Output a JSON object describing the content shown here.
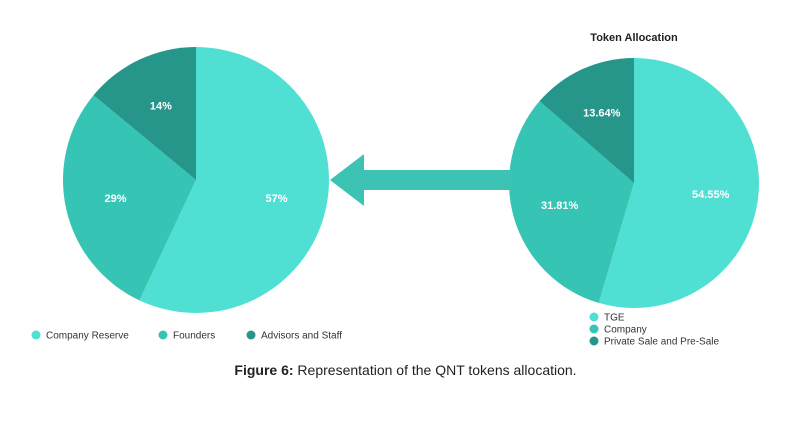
{
  "chart_data": [
    {
      "type": "pie",
      "title": "",
      "slices": [
        {
          "name": "Company Reserve",
          "value": 57,
          "label": "57%",
          "color": "#4fe0d3"
        },
        {
          "name": "Founders",
          "value": 29,
          "label": "29%",
          "color": "#36c4b4"
        },
        {
          "name": "Advisors and Staff",
          "value": 14,
          "label": "14%",
          "color": "#26968b"
        }
      ],
      "legend_position": "bottom"
    },
    {
      "type": "pie",
      "title": "Token Allocation",
      "slices": [
        {
          "name": "TGE",
          "value": 54.55,
          "label": "54.55%",
          "color": "#4fe0d3"
        },
        {
          "name": "Company",
          "value": 31.81,
          "label": "31.81%",
          "color": "#36c4b4"
        },
        {
          "name": "Private Sale and Pre-Sale",
          "value": 13.64,
          "label": "13.64%",
          "color": "#26968b"
        }
      ],
      "legend_position": "bottom"
    }
  ],
  "arrow": {
    "direction": "left",
    "color": "#3cc3b3"
  },
  "caption": {
    "prefix": "Figure 6:",
    "text": " Representation of the QNT tokens allocation."
  }
}
